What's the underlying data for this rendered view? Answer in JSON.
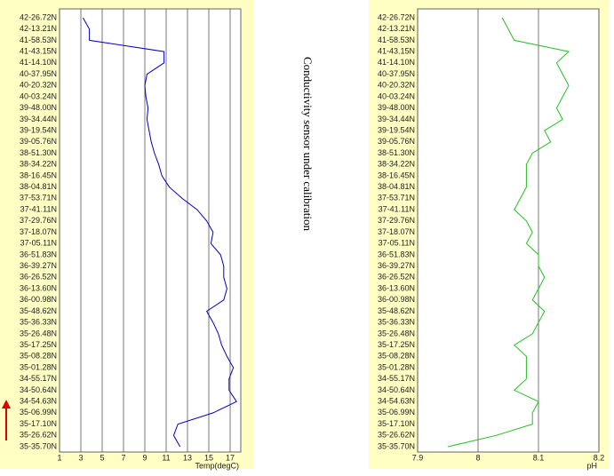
{
  "annotation": "Conductivity sensor under calibration",
  "chart_data": [
    {
      "type": "line",
      "xlabel": "Temp(degC)",
      "color": "#0000c0",
      "categories": [
        "42-26.72N",
        "42-13.21N",
        "41-58.53N",
        "41-43.15N",
        "41-14.10N",
        "40-37.95N",
        "40-20.32N",
        "40-03.24N",
        "39-48.00N",
        "39-34.44N",
        "39-19.54N",
        "39-05.76N",
        "38-51.30N",
        "38-34.22N",
        "38-16.45N",
        "38-04.81N",
        "37-53.71N",
        "37-41.11N",
        "37-29.76N",
        "37-18.07N",
        "37-05.11N",
        "36-51.83N",
        "36-39.27N",
        "36-26.52N",
        "36-13.60N",
        "36-00.98N",
        "35-48.62N",
        "35-36.33N",
        "35-26.48N",
        "35-17.25N",
        "35-08.28N",
        "35-01.28N",
        "34-55.17N",
        "34-50.64N",
        "34-54.63N",
        "35-06.99N",
        "35-17.10N",
        "35-26.62N",
        "35-35.70N"
      ],
      "values": [
        3.2,
        3.8,
        3.8,
        10.8,
        10.8,
        9.2,
        9.0,
        9.1,
        9.3,
        9.2,
        9.4,
        9.6,
        9.9,
        10.3,
        10.6,
        11.3,
        12.5,
        13.9,
        14.8,
        15.4,
        15.2,
        16.1,
        16.4,
        16.4,
        16.7,
        16.4,
        14.8,
        15.4,
        15.9,
        16.2,
        16.7,
        17.3,
        16.9,
        16.9,
        17.6,
        15.4,
        12.1,
        11.7,
        12.3
      ],
      "xlim": [
        1,
        18
      ],
      "xticks": [
        1,
        3,
        5,
        7,
        9,
        11,
        13,
        15,
        17
      ],
      "grid": true
    },
    {
      "type": "line",
      "xlabel": "pH",
      "color": "#22c022",
      "categories": [
        "42-26.72N",
        "42-13.21N",
        "41-58.53N",
        "41-43.15N",
        "41-14.10N",
        "40-37.95N",
        "40-20.32N",
        "40-03.24N",
        "39-48.00N",
        "39-34.44N",
        "39-19.54N",
        "39-05.76N",
        "38-51.30N",
        "38-34.22N",
        "38-16.45N",
        "38-04.81N",
        "37-53.71N",
        "37-41.11N",
        "37-29.76N",
        "37-18.07N",
        "37-05.11N",
        "36-51.83N",
        "36-39.27N",
        "36-26.52N",
        "36-13.60N",
        "36-00.98N",
        "35-48.62N",
        "35-36.33N",
        "35-26.48N",
        "35-17.25N",
        "35-08.28N",
        "35-01.28N",
        "34-55.17N",
        "34-50.64N",
        "34-54.63N",
        "35-06.99N",
        "35-17.10N",
        "35-26.62N",
        "35-35.70N"
      ],
      "values": [
        8.04,
        8.05,
        8.06,
        8.15,
        8.13,
        8.14,
        8.15,
        8.14,
        8.13,
        8.14,
        8.11,
        8.12,
        8.09,
        8.08,
        8.08,
        8.08,
        8.07,
        8.06,
        8.08,
        8.09,
        8.08,
        8.1,
        8.1,
        8.11,
        8.1,
        8.09,
        8.11,
        8.1,
        8.09,
        8.06,
        8.08,
        8.08,
        8.08,
        8.06,
        8.1,
        8.09,
        8.09,
        8.03,
        7.95
      ],
      "xlim": [
        7.9,
        8.2
      ],
      "xticks": [
        7.9,
        8,
        8.1,
        8.2
      ],
      "grid": true
    }
  ]
}
